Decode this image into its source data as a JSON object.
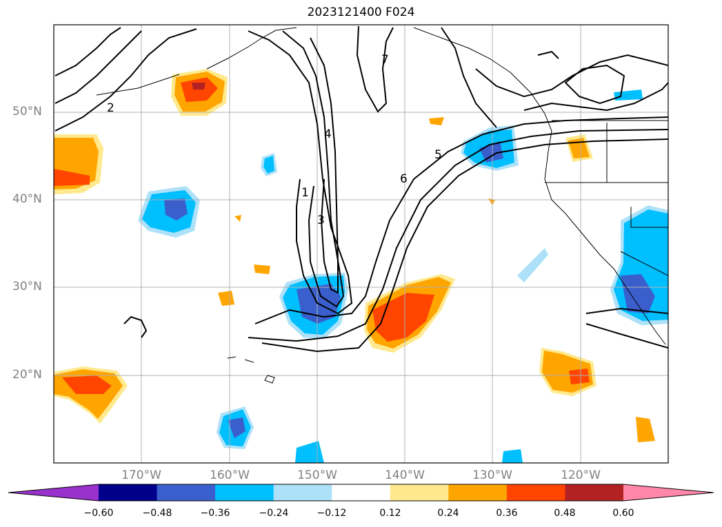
{
  "title": "2023121400 F024",
  "map": {
    "lat_ticks": [
      "50°N",
      "40°N",
      "30°N",
      "20°N"
    ],
    "lon_ticks": [
      "170°W",
      "160°W",
      "150°W",
      "140°W",
      "130°W",
      "120°W"
    ],
    "extent": {
      "lon_min": -180,
      "lon_max": -110,
      "lat_min": 10,
      "lat_max": 60
    },
    "grid": true,
    "contour_labels": [
      "1",
      "2",
      "3",
      "4",
      "5",
      "6",
      "7"
    ]
  },
  "colorbar": {
    "ticks": [
      "−0.60",
      "−0.48",
      "−0.36",
      "−0.24",
      "−0.12",
      "0.12",
      "0.24",
      "0.36",
      "0.48",
      "0.60"
    ],
    "colors": [
      "#9932CC",
      "#00008B",
      "#3A5FCD",
      "#00BFFF",
      "#ADE1F9",
      "#FFFFFF",
      "#FFE98C",
      "#FFA500",
      "#FF4500",
      "#B22222",
      "#FF88AA"
    ]
  }
}
